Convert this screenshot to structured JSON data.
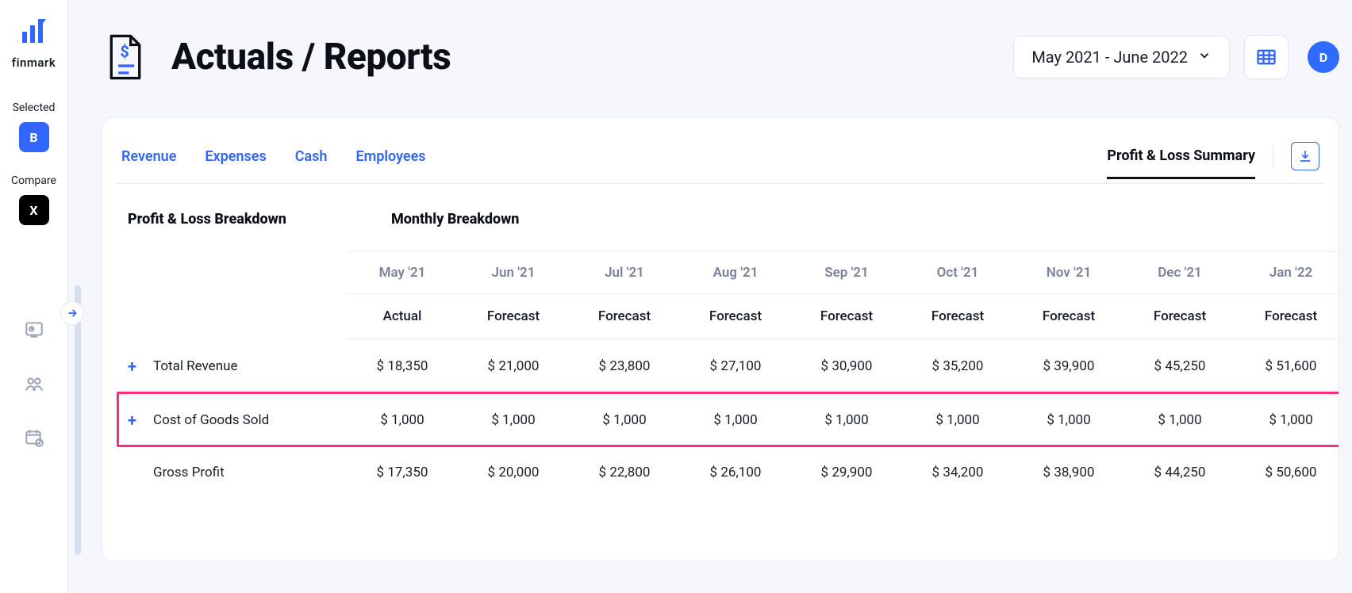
{
  "brand": {
    "name": "finmark"
  },
  "sidebar": {
    "selected_label": "Selected",
    "compare_label": "Compare",
    "selected_badge": "B",
    "compare_badge": "X"
  },
  "header": {
    "title": "Actuals / Reports",
    "date_range": "May 2021 - June 2022",
    "avatar_initial": "D"
  },
  "tabs": {
    "items": [
      "Revenue",
      "Expenses",
      "Cash",
      "Employees"
    ],
    "active": "Profit & Loss Summary"
  },
  "sections": {
    "left": "Profit & Loss Breakdown",
    "right": "Monthly Breakdown"
  },
  "table": {
    "months": [
      "May '21",
      "Jun '21",
      "Jul '21",
      "Aug '21",
      "Sep '21",
      "Oct '21",
      "Nov '21",
      "Dec '21",
      "Jan '22"
    ],
    "types": [
      "Actual",
      "Forecast",
      "Forecast",
      "Forecast",
      "Forecast",
      "Forecast",
      "Forecast",
      "Forecast",
      "Forecast"
    ],
    "rows": [
      {
        "label": "Total Revenue",
        "expandable": true,
        "values": [
          "$  18,350",
          "$  21,000",
          "$ 23,800",
          "$   27,100",
          "$  30,900",
          "$  35,200",
          "$  39,900",
          "$  45,250",
          "$  51,600"
        ]
      },
      {
        "label": "Cost of Goods Sold",
        "expandable": true,
        "highlight": true,
        "values": [
          "$    1,000",
          "$    1,000",
          "$    1,000",
          "$     1,000",
          "$     1,000",
          "$     1,000",
          "$     1,000",
          "$     1,000",
          "$     1,000"
        ]
      },
      {
        "label": "Gross Profit",
        "expandable": false,
        "values": [
          "$  17,350",
          "$ 20,000",
          "$ 22,800",
          "$   26,100",
          "$  29,900",
          "$  34,200",
          "$  38,900",
          "$  44,250",
          "$  50,600"
        ]
      }
    ],
    "trailing_partial": "$"
  },
  "colors": {
    "accent": "#3366ff",
    "highlight": "#ff2d78",
    "muted": "#7a8299",
    "border": "#e7ebf3",
    "page_bg": "#f5f7fc"
  }
}
